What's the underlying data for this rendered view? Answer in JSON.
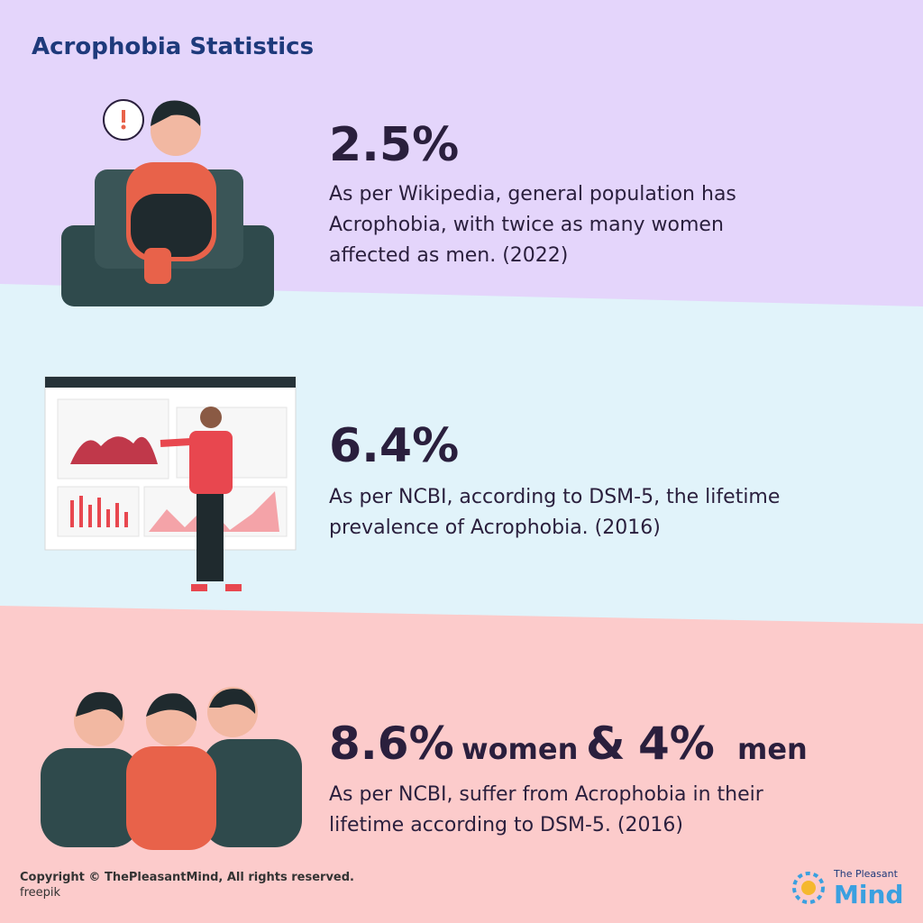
{
  "header": {
    "title": "Acrophobia Statistics"
  },
  "sections": [
    {
      "stat": [
        "2.5%"
      ],
      "lines": [
        "As per Wikipedia, general population has",
        "Acrophobia, with twice as many women",
        "affected as men. (2022)"
      ]
    },
    {
      "stat": [
        "6.4%"
      ],
      "lines": [
        "As per NCBI, according to DSM-5, the lifetime",
        "prevalence of Acrophobia. (2016)"
      ]
    },
    {
      "stat": [
        "8.6%",
        "women",
        "&",
        "4%",
        "men"
      ],
      "lines": [
        "As per NCBI, suffer from Acrophobia in their",
        "lifetime according to DSM-5. (2016)"
      ]
    }
  ],
  "footer": {
    "copyright": "Copyright © ThePleasantMind, All rights reserved.",
    "credit": "freepik",
    "logo_top": "The Pleasant",
    "logo_bottom": "Mind"
  }
}
